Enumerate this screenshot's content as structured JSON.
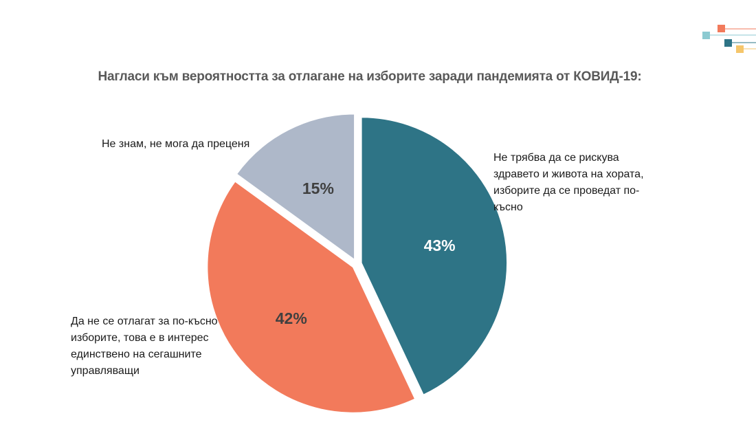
{
  "chart_data": {
    "type": "pie",
    "title": "Нагласи към вероятността за отлагане на изборите заради пандемията от КОВИД-19:",
    "slices": [
      {
        "label": "Не трябва да се рискува здравето и живота на хората, изборите да се проведат по-късно",
        "label_lines": [
          "Не трябва да се рискува",
          "здравето и живота на хората,",
          "изборите да се проведат по-",
          "късно"
        ],
        "value": 43,
        "display": "43%",
        "color": "#2E7486",
        "value_color": "#ffffff"
      },
      {
        "label": "Да не се отлагат за по-късно изборите, това е в интерес единствено на сегашните управляващи",
        "label_lines": [
          "Да не се отлагат за по-късно",
          "изборите, това е в интерес",
          "единствено на сегашните",
          "управляващи"
        ],
        "value": 42,
        "display": "42%",
        "color": "#F27A5B",
        "value_color": "#404040"
      },
      {
        "label": "Не знам, не мога да преценя",
        "label_lines": [
          "Не знам, не мога да преценя"
        ],
        "value": 15,
        "display": "15%",
        "color": "#AEB8C9",
        "value_color": "#404040"
      }
    ],
    "legend": "none"
  },
  "logo": {
    "name": "decorative-squares-logo",
    "colors": [
      "#8CCAD1",
      "#F27A5B",
      "#2E7486",
      "#F5C66B"
    ]
  }
}
